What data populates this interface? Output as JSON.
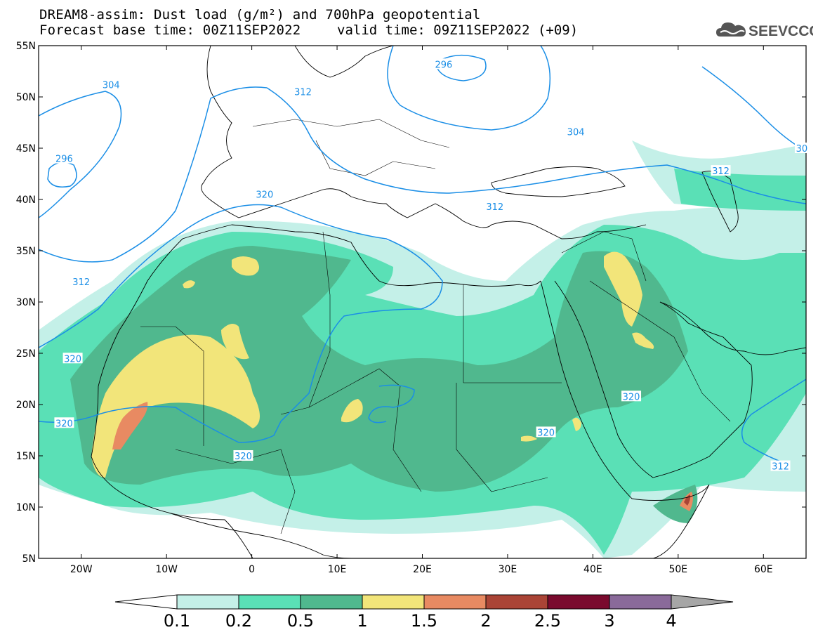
{
  "header": {
    "title_line1": "DREAM8-assim: Dust load (g/m²) and 700hPa geopotential",
    "title_line2": "Forecast base time: 00Z11SEP2022",
    "valid_time": "valid time: 09Z11SEP2022 (+09)",
    "logo_text": "SEEVCCC",
    "logo_icon": "cloud-icon"
  },
  "map": {
    "lat_range": [
      5,
      55
    ],
    "lon_range": [
      -25,
      65
    ],
    "lat_labels": [
      "55N",
      "50N",
      "45N",
      "40N",
      "35N",
      "30N",
      "25N",
      "20N",
      "15N",
      "10N",
      "5N"
    ],
    "lon_labels": [
      "20W",
      "10W",
      "0",
      "10E",
      "20E",
      "30E",
      "40E",
      "50E",
      "60E"
    ],
    "contour_color": "#1a8ee6",
    "contour_labels": [
      {
        "text": "304",
        "lon": -16.5,
        "lat": 51.2
      },
      {
        "text": "312",
        "lon": 6,
        "lat": 50.5
      },
      {
        "text": "296",
        "lon": 22.5,
        "lat": 53.2
      },
      {
        "text": "304",
        "lon": 38,
        "lat": 46.6
      },
      {
        "text": "296",
        "lon": -22,
        "lat": 44.0
      },
      {
        "text": "312",
        "lon": 55,
        "lat": 42.8
      },
      {
        "text": "320",
        "lon": 1.5,
        "lat": 40.5
      },
      {
        "text": "312",
        "lon": 28.5,
        "lat": 39.3
      },
      {
        "text": "312",
        "lon": -20,
        "lat": 32.0
      },
      {
        "text": "320",
        "lon": -21,
        "lat": 24.5
      },
      {
        "text": "320",
        "lon": -22,
        "lat": 18.2
      },
      {
        "text": "320",
        "lon": -1,
        "lat": 15.0
      },
      {
        "text": "320",
        "lon": 44.5,
        "lat": 20.8
      },
      {
        "text": "320",
        "lon": 34.5,
        "lat": 17.3
      },
      {
        "text": "312",
        "lon": 62,
        "lat": 14.0
      },
      {
        "text": "30",
        "lon": 64.5,
        "lat": 45.0
      }
    ]
  },
  "colorbar": {
    "labels": [
      "0.1",
      "0.2",
      "0.5",
      "1",
      "1.5",
      "2",
      "2.5",
      "3",
      "4"
    ],
    "colors": [
      "#c4f0e8",
      "#5ae0b6",
      "#50b88e",
      "#f2e57a",
      "#e88a62",
      "#aa4436",
      "#7a0a2e",
      "#8a6a9a"
    ],
    "low_color": "#ffffff",
    "high_color": "#a6a6a6"
  }
}
